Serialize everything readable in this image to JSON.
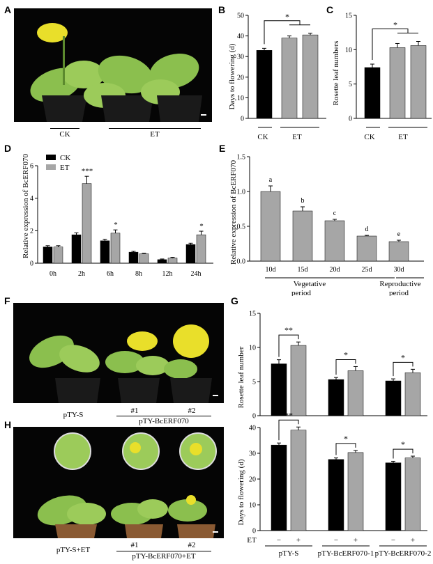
{
  "panels": {
    "A": "A",
    "B": "B",
    "C": "C",
    "D": "D",
    "E": "E",
    "F": "F",
    "G": "G",
    "H": "H"
  },
  "photoA": {
    "labels": [
      "CK",
      "ET"
    ]
  },
  "photoF": {
    "labels": {
      "left": "pTY-S",
      "n1": "#1",
      "n2": "#2",
      "group": "pTY-BcERF070"
    }
  },
  "photoH": {
    "labels": {
      "left": "pTY-S+ET",
      "n1": "#1",
      "n2": "#2",
      "group": "pTY-BcERF070+ET"
    }
  },
  "colors": {
    "ck": "#000000",
    "et": "#a6a6a6",
    "photo_bg": "#050505",
    "leaf": "#8bbf4e",
    "flower": "#e9df2a"
  },
  "chart_data": [
    {
      "id": "B",
      "type": "bar",
      "categories": [
        "CK",
        "ET",
        "ET"
      ],
      "values": [
        33,
        39,
        40.5
      ],
      "errors": [
        1,
        1,
        0.8
      ],
      "colors": [
        "#000000",
        "#a6a6a6",
        "#a6a6a6"
      ],
      "group_labels": [
        "CK",
        "ET"
      ],
      "ylabel": "Days to flowering (d)",
      "ylim": [
        0,
        50
      ],
      "yticks": [
        0,
        10,
        20,
        30,
        40,
        50
      ],
      "significance": [
        "*"
      ]
    },
    {
      "id": "C",
      "type": "bar",
      "categories": [
        "CK",
        "ET",
        "ET"
      ],
      "values": [
        7.4,
        10.3,
        10.6
      ],
      "errors": [
        0.5,
        0.6,
        0.6
      ],
      "colors": [
        "#000000",
        "#a6a6a6",
        "#a6a6a6"
      ],
      "group_labels": [
        "CK",
        "ET"
      ],
      "ylabel": "Rosette leaf numbers",
      "ylim": [
        0,
        15
      ],
      "yticks": [
        0,
        5,
        10,
        15
      ],
      "significance": [
        "*"
      ]
    },
    {
      "id": "D",
      "type": "bar",
      "categories": [
        "0h",
        "2h",
        "6h",
        "8h",
        "12h",
        "24h"
      ],
      "series": [
        {
          "name": "CK",
          "color": "#000000",
          "values": [
            1.0,
            1.75,
            1.38,
            0.68,
            0.22,
            1.15
          ],
          "errors": [
            0.08,
            0.12,
            0.1,
            0.05,
            0.04,
            0.08
          ]
        },
        {
          "name": "ET",
          "color": "#a6a6a6",
          "values": [
            1.0,
            4.9,
            1.85,
            0.58,
            0.32,
            1.75
          ],
          "errors": [
            0.08,
            0.45,
            0.2,
            0.04,
            0.04,
            0.22
          ]
        }
      ],
      "ylabel": "Relative expression of BcERF070",
      "ylim": [
        0,
        6
      ],
      "yticks": [
        0,
        2,
        4,
        6
      ],
      "annotations": [
        "",
        "***",
        "*",
        "",
        "",
        "*"
      ],
      "legend": "top-left"
    },
    {
      "id": "E",
      "type": "bar",
      "categories": [
        "10d",
        "15d",
        "20d",
        "25d",
        "30d"
      ],
      "values": [
        1.0,
        0.72,
        0.58,
        0.36,
        0.28
      ],
      "errors": [
        0.08,
        0.06,
        0.02,
        0.01,
        0.02
      ],
      "letters": [
        "a",
        "b",
        "c",
        "d",
        "e"
      ],
      "color": "#a6a6a6",
      "ylabel": "Relative expression of BcERF070",
      "ylim": [
        0,
        1.5
      ],
      "yticks": [
        "0.0",
        "0.5",
        "1.0",
        "1.5"
      ],
      "periods": [
        "Vegetative period",
        "Reproductive period"
      ]
    },
    {
      "id": "G1",
      "type": "bar",
      "groups": [
        "pTY-S",
        "pTY-BcERF070-1",
        "pTY-BcERF070-2"
      ],
      "values": [
        [
          7.6,
          10.3
        ],
        [
          5.3,
          6.6
        ],
        [
          5.1,
          6.3
        ]
      ],
      "errors": [
        [
          0.6,
          0.5
        ],
        [
          0.3,
          0.6
        ],
        [
          0.3,
          0.5
        ]
      ],
      "ylabel": "Rosette leaf number",
      "ylim": [
        0,
        15
      ],
      "yticks": [
        0,
        5,
        10,
        15
      ],
      "significance": [
        "**",
        "*",
        "*"
      ]
    },
    {
      "id": "G2",
      "type": "bar",
      "groups": [
        "pTY-S",
        "pTY-BcERF070-1",
        "pTY-BcERF070-2"
      ],
      "values": [
        [
          33.2,
          39.0
        ],
        [
          27.6,
          30.3
        ],
        [
          26.3,
          28.2
        ]
      ],
      "errors": [
        [
          0.8,
          1.2
        ],
        [
          0.6,
          0.8
        ],
        [
          0.6,
          0.7
        ]
      ],
      "ylabel": "Days to flowering (d)",
      "ylim": [
        0,
        40
      ],
      "yticks": [
        0,
        10,
        20,
        30,
        40
      ],
      "significance": [
        "**",
        "*",
        "*"
      ],
      "et_row": {
        "label": "ET",
        "signs": [
          "−",
          "+",
          "−",
          "+",
          "−",
          "+"
        ]
      },
      "group_labels": [
        "pTY-S",
        "pTY-BcERF070-1",
        "pTY-BcERF070-2"
      ]
    }
  ]
}
